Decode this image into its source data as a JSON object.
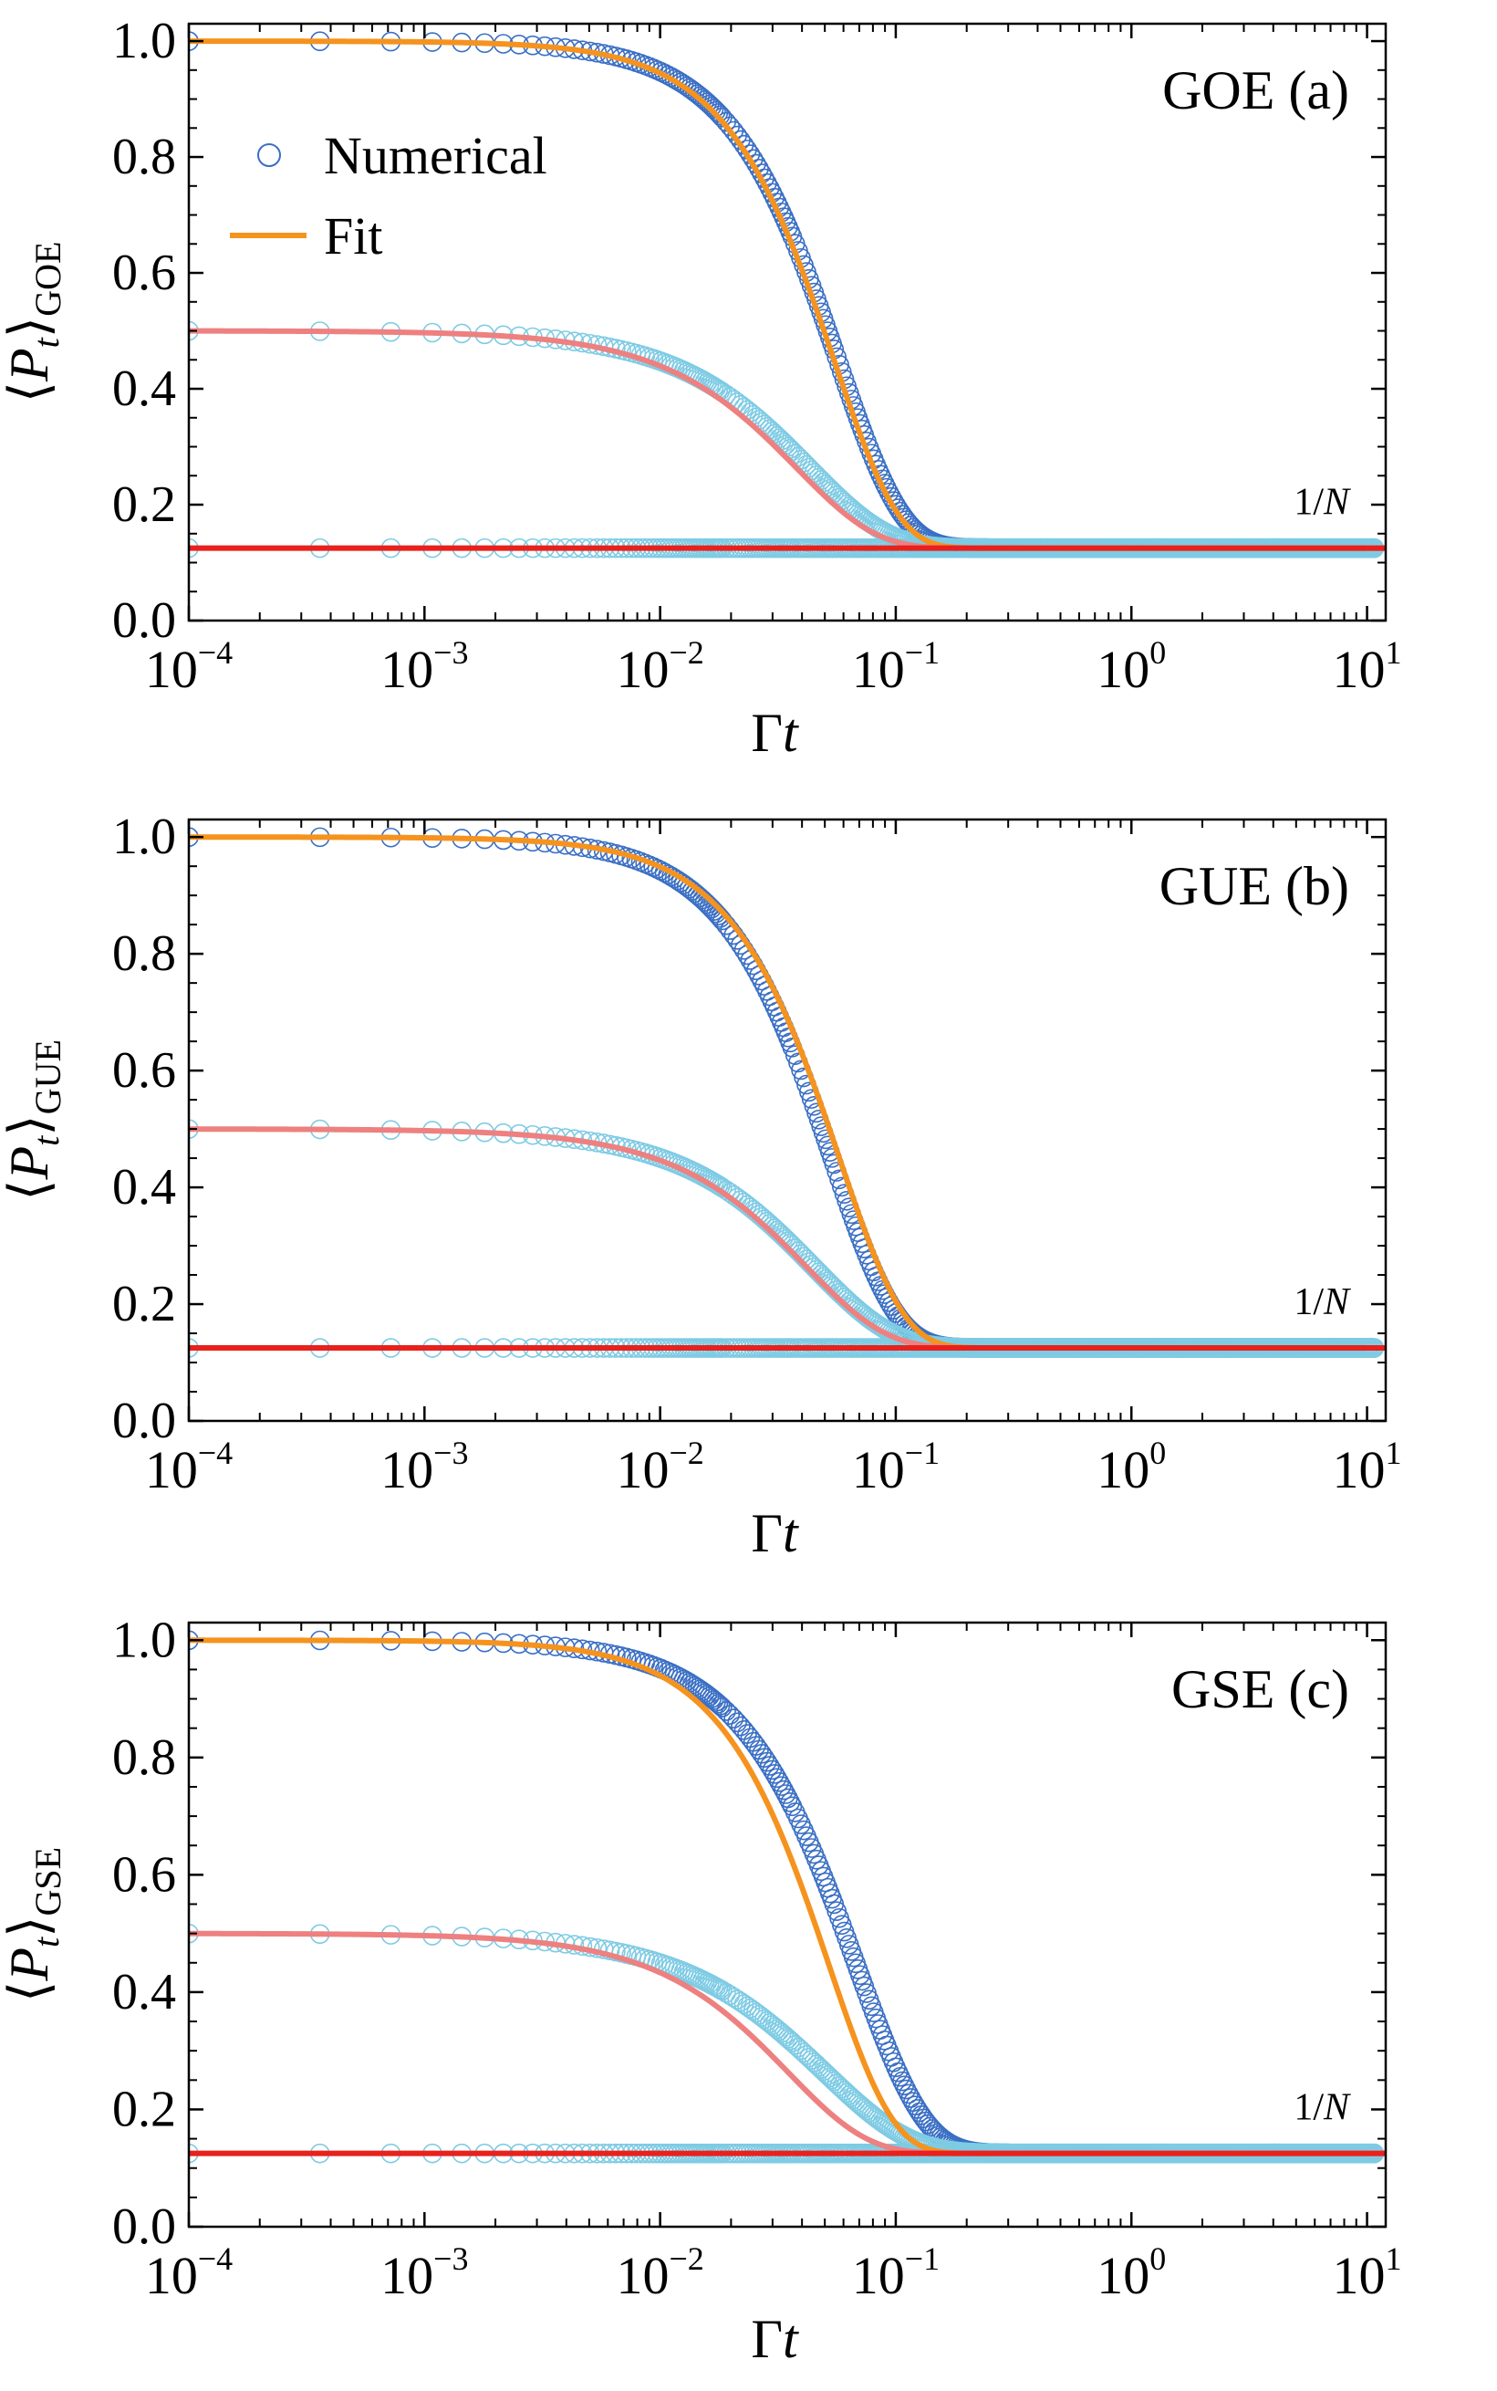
{
  "figure": {
    "legend": {
      "numerical": "Numerical",
      "fit": "Fit"
    },
    "colors": {
      "top_series_markers": "#3a6fc4",
      "top_series_fit": "#f5931e",
      "other_series_markers": "#7ecbe4",
      "middle_series_fit": "#ee8080",
      "bottom_series_fit": "#e8211c",
      "axes": "#000000"
    }
  },
  "chart_data": [
    {
      "type": "line",
      "panel_label": "GOE (a)",
      "ylabel": {
        "angle": "⟨",
        "var": "P",
        "sub_t": "t",
        "close": "⟩",
        "sub": "GOE"
      },
      "xlabel": {
        "greek": "Γ",
        "var": "t"
      },
      "annotation": {
        "num": "1/",
        "var": "N"
      },
      "x_scale": "log",
      "xlim": [
        0.0001,
        12
      ],
      "ylim": [
        0.0,
        1.03
      ],
      "x_ticks": [
        {
          "value": 0.0001,
          "base": "10",
          "exp": "−4"
        },
        {
          "value": 0.001,
          "base": "10",
          "exp": "−3"
        },
        {
          "value": 0.01,
          "base": "10",
          "exp": "−2"
        },
        {
          "value": 0.1,
          "base": "10",
          "exp": "−1"
        },
        {
          "value": 1,
          "base": "10",
          "exp": "0"
        },
        {
          "value": 10,
          "base": "10",
          "exp": "1"
        }
      ],
      "y_ticks": [
        {
          "value": 0.0,
          "label": "0.0"
        },
        {
          "value": 0.2,
          "label": "0.2"
        },
        {
          "value": 0.4,
          "label": "0.4"
        },
        {
          "value": 0.6,
          "label": "0.6"
        },
        {
          "value": 0.8,
          "label": "0.8"
        },
        {
          "value": 1.0,
          "label": "1.0"
        }
      ],
      "fits": [
        {
          "start": 1.0,
          "end": 0.125,
          "tau": 0.055,
          "shape": 1.6,
          "color": "#f5931e"
        },
        {
          "start": 0.5,
          "end": 0.125,
          "tau": 0.038,
          "shape": 1.3,
          "color": "#ee8080"
        },
        {
          "start": 0.125,
          "end": 0.125,
          "tau": 0.05,
          "shape": 1.0,
          "color": "#e8211c"
        }
      ],
      "numerical": [
        {
          "start": 1.0,
          "end": 0.125,
          "tau": 0.057,
          "shape": 1.6,
          "color": "#3a6fc4"
        },
        {
          "start": 0.5,
          "end": 0.125,
          "tau": 0.043,
          "shape": 1.3,
          "color": "#7ecbe4"
        },
        {
          "start": 0.125,
          "end": 0.125,
          "tau": 0.05,
          "shape": 1.0,
          "color": "#7ecbe4"
        }
      ]
    },
    {
      "type": "line",
      "panel_label": "GUE (b)",
      "ylabel": {
        "angle": "⟨",
        "var": "P",
        "sub_t": "t",
        "close": "⟩",
        "sub": "GUE"
      },
      "xlabel": {
        "greek": "Γ",
        "var": "t"
      },
      "annotation": {
        "num": "1/",
        "var": "N"
      },
      "x_scale": "log",
      "xlim": [
        0.0001,
        12
      ],
      "ylim": [
        0.0,
        1.03
      ],
      "x_ticks": [
        {
          "value": 0.0001,
          "base": "10",
          "exp": "−4"
        },
        {
          "value": 0.001,
          "base": "10",
          "exp": "−3"
        },
        {
          "value": 0.01,
          "base": "10",
          "exp": "−2"
        },
        {
          "value": 0.1,
          "base": "10",
          "exp": "−1"
        },
        {
          "value": 1,
          "base": "10",
          "exp": "0"
        },
        {
          "value": 10,
          "base": "10",
          "exp": "1"
        }
      ],
      "y_ticks": [
        {
          "value": 0.0,
          "label": "0.0"
        },
        {
          "value": 0.2,
          "label": "0.2"
        },
        {
          "value": 0.4,
          "label": "0.4"
        },
        {
          "value": 0.6,
          "label": "0.6"
        },
        {
          "value": 0.8,
          "label": "0.8"
        },
        {
          "value": 1.0,
          "label": "1.0"
        }
      ],
      "fits": [
        {
          "start": 1.0,
          "end": 0.125,
          "tau": 0.058,
          "shape": 1.6,
          "color": "#f5931e"
        },
        {
          "start": 0.5,
          "end": 0.125,
          "tau": 0.042,
          "shape": 1.3,
          "color": "#ee8080"
        },
        {
          "start": 0.125,
          "end": 0.125,
          "tau": 0.05,
          "shape": 1.0,
          "color": "#e8211c"
        }
      ],
      "numerical": [
        {
          "start": 1.0,
          "end": 0.125,
          "tau": 0.054,
          "shape": 1.6,
          "color": "#3a6fc4"
        },
        {
          "start": 0.5,
          "end": 0.125,
          "tau": 0.045,
          "shape": 1.3,
          "color": "#7ecbe4"
        },
        {
          "start": 0.125,
          "end": 0.125,
          "tau": 0.05,
          "shape": 1.0,
          "color": "#7ecbe4"
        }
      ]
    },
    {
      "type": "line",
      "panel_label": "GSE (c)",
      "ylabel": {
        "angle": "⟨",
        "var": "P",
        "sub_t": "t",
        "close": "⟩",
        "sub": "GSE"
      },
      "xlabel": {
        "greek": "Γ",
        "var": "t"
      },
      "annotation": {
        "num": "1/",
        "var": "N"
      },
      "x_scale": "log",
      "xlim": [
        0.0001,
        12
      ],
      "ylim": [
        0.0,
        1.03
      ],
      "x_ticks": [
        {
          "value": 0.0001,
          "base": "10",
          "exp": "−4"
        },
        {
          "value": 0.001,
          "base": "10",
          "exp": "−3"
        },
        {
          "value": 0.01,
          "base": "10",
          "exp": "−2"
        },
        {
          "value": 0.1,
          "base": "10",
          "exp": "−1"
        },
        {
          "value": 1,
          "base": "10",
          "exp": "0"
        },
        {
          "value": 10,
          "base": "10",
          "exp": "1"
        }
      ],
      "y_ticks": [
        {
          "value": 0.0,
          "label": "0.0"
        },
        {
          "value": 0.2,
          "label": "0.2"
        },
        {
          "value": 0.4,
          "label": "0.4"
        },
        {
          "value": 0.6,
          "label": "0.6"
        },
        {
          "value": 0.8,
          "label": "0.8"
        },
        {
          "value": 1.0,
          "label": "1.0"
        }
      ],
      "fits": [
        {
          "start": 1.0,
          "end": 0.125,
          "tau": 0.052,
          "shape": 1.6,
          "color": "#f5931e"
        },
        {
          "start": 0.5,
          "end": 0.125,
          "tau": 0.035,
          "shape": 1.3,
          "color": "#ee8080"
        },
        {
          "start": 0.125,
          "end": 0.125,
          "tau": 0.05,
          "shape": 1.0,
          "color": "#e8211c"
        }
      ],
      "numerical": [
        {
          "start": 1.0,
          "end": 0.125,
          "tau": 0.068,
          "shape": 1.5,
          "color": "#3a6fc4"
        },
        {
          "start": 0.5,
          "end": 0.125,
          "tau": 0.05,
          "shape": 1.2,
          "color": "#7ecbe4"
        },
        {
          "start": 0.125,
          "end": 0.125,
          "tau": 0.05,
          "shape": 1.0,
          "color": "#7ecbe4"
        }
      ]
    }
  ]
}
